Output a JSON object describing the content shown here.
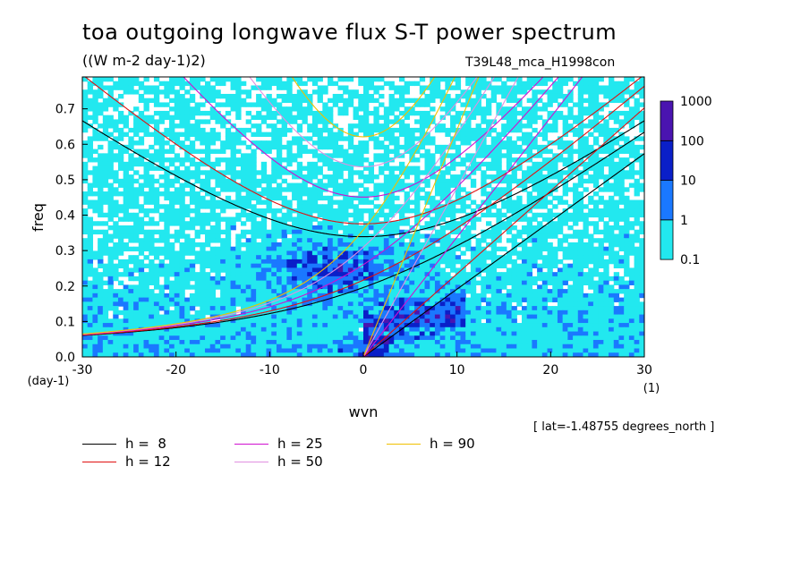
{
  "title": "toa outgoing longwave flux S-T power spectrum",
  "units_label": "((W m-2 day-1)2)",
  "run_name": "T39L48_mca_H1998con",
  "lat_note": "[ lat=-1.48755 degrees_north ]",
  "chart_data": {
    "type": "heatmap",
    "xlabel": "wvn",
    "ylabel": "freq",
    "x_unit_label": "(1)",
    "y_unit_label": "(day-1)",
    "xlim": [
      -30,
      30
    ],
    "ylim": [
      0,
      0.79
    ],
    "x_ticks": [
      -30,
      -20,
      -10,
      0,
      10,
      20,
      30
    ],
    "x_tick_labels": [
      "-30",
      "-20",
      "-10",
      "0",
      "10",
      "20",
      "30"
    ],
    "y_ticks": [
      0,
      0.1,
      0.2,
      0.3,
      0.4,
      0.5,
      0.6,
      0.7
    ],
    "y_tick_labels": [
      "0.0",
      "0.1",
      "0.2",
      "0.3",
      "0.4",
      "0.5",
      "0.6",
      "0.7"
    ],
    "colorbar": {
      "levels": [
        "0.1",
        "1",
        "10",
        "100",
        "1000"
      ],
      "colors": [
        "#22e8ef",
        "#1a78ff",
        "#0a1fc8",
        "#4a14b0"
      ]
    },
    "dispersion_curves": [
      {
        "label": "h =  8",
        "h": 8,
        "color": "#000000"
      },
      {
        "label": "h = 12",
        "h": 12,
        "color": "#e01010"
      },
      {
        "label": "h = 25",
        "h": 25,
        "color": "#d010d0"
      },
      {
        "label": "h = 50",
        "h": 50,
        "color": "#e090e0"
      },
      {
        "label": "h = 90",
        "h": 90,
        "color": "#f0c000"
      }
    ]
  }
}
